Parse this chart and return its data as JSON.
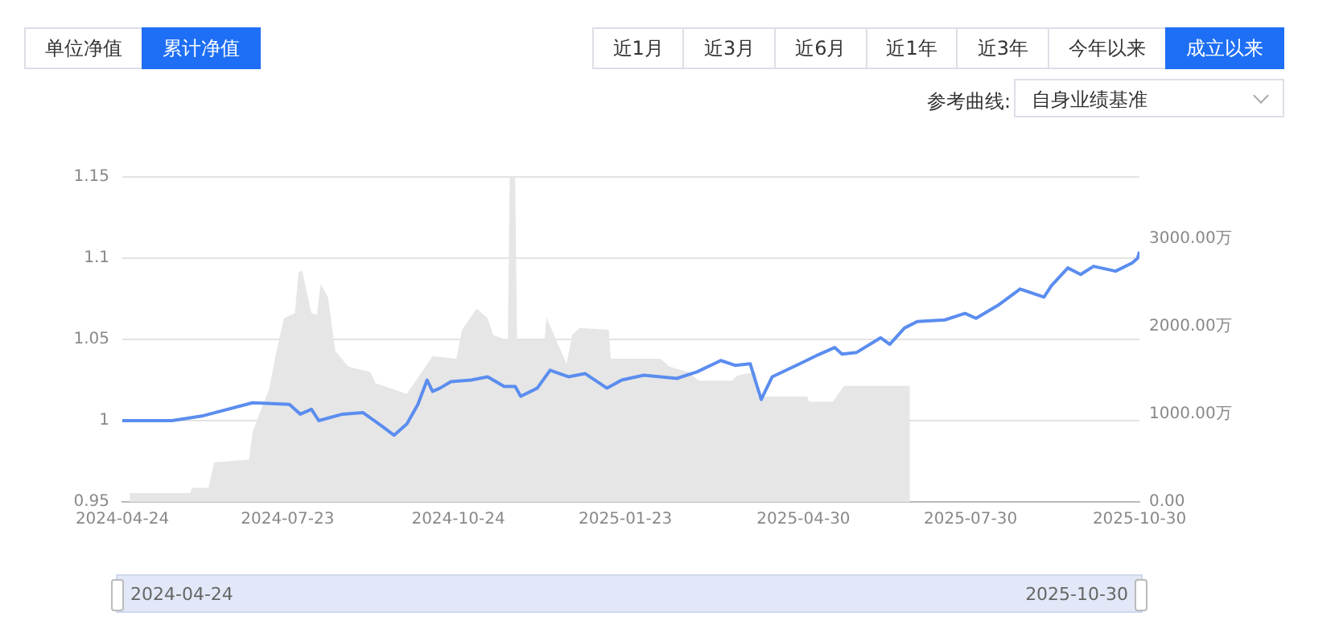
{
  "chart_data": {
    "type": "line",
    "annotations": [
      "单位净值",
      "累计净值",
      "近1月",
      "近3月",
      "近6月",
      "近1年",
      "近3年",
      "今年以来",
      "成立以来",
      "参考曲线:",
      "自身业绩基准",
      "2024-04-24",
      "2025-10-30"
    ],
    "ylim": [
      0.95,
      1.15
    ],
    "yticks": [
      0.95,
      1,
      1.05,
      1.1,
      1.15
    ],
    "y2lim": [
      0,
      3700
    ],
    "y2ticks": [
      {
        "value": 0,
        "label": "0.00"
      },
      {
        "value": 1000,
        "label": "1000.00万"
      },
      {
        "value": 2000,
        "label": "2000.00万"
      },
      {
        "value": 3000,
        "label": "3000.00万"
      }
    ],
    "xlim": [
      "2024-04-24",
      "2025-10-30"
    ],
    "xticks": [
      "2024-04-24",
      "2024-07-23",
      "2024-10-24",
      "2025-01-23",
      "2025-04-30",
      "2025-07-30",
      "2025-10-30"
    ],
    "grid": "y",
    "legend": false,
    "marker": "none",
    "series": [
      {
        "type": "area",
        "axis": "y2",
        "color": "#e6e6e6",
        "x": [
          "2024-04-28",
          "2024-05-31",
          "2024-06-01",
          "2024-06-10",
          "2024-06-13",
          "2024-07-02",
          "2024-07-04",
          "2024-07-13",
          "2024-07-17",
          "2024-07-21",
          "2024-07-27",
          "2024-07-29",
          "2024-07-31",
          "2024-08-05",
          "2024-08-08",
          "2024-08-10",
          "2024-08-14",
          "2024-08-18",
          "2024-08-25",
          "2024-09-06",
          "2024-09-09",
          "2024-09-26",
          "2024-10-10",
          "2024-10-23",
          "2024-10-26",
          "2024-11-03",
          "2024-11-09",
          "2024-11-12",
          "2024-11-20",
          "2024-11-21",
          "2024-11-24",
          "2024-11-25",
          "2024-12-10",
          "2024-12-11",
          "2024-12-16",
          "2024-12-22",
          "2024-12-25",
          "2024-12-29",
          "2025-01-14",
          "2025-01-15",
          "2025-02-11",
          "2025-02-16",
          "2025-02-26",
          "2025-03-04",
          "2025-03-22",
          "2025-03-25",
          "2025-04-04",
          "2025-04-05",
          "2025-05-02",
          "2025-05-03",
          "2025-05-16",
          "2025-05-22",
          "2025-06-27"
        ],
        "values": [
          100,
          100,
          160,
          160,
          450,
          480,
          800,
          1290,
          1720,
          2090,
          2150,
          2620,
          2630,
          2150,
          2130,
          2480,
          2330,
          1720,
          1540,
          1480,
          1350,
          1230,
          1660,
          1630,
          1960,
          2200,
          2090,
          1900,
          1840,
          3700,
          3700,
          1840,
          1840,
          2100,
          1860,
          1570,
          1900,
          1980,
          1960,
          1630,
          1630,
          1540,
          1480,
          1380,
          1380,
          1440,
          1480,
          1200,
          1200,
          1140,
          1140,
          1320,
          1320
        ]
      },
      {
        "type": "line",
        "color": "#5b8def",
        "x": [
          "2024-04-24",
          "2024-05-21",
          "2024-06-07",
          "2024-07-04",
          "2024-07-24",
          "2024-07-30",
          "2024-08-05",
          "2024-08-09",
          "2024-08-22",
          "2024-09-02",
          "2024-09-12",
          "2024-09-19",
          "2024-09-26",
          "2024-10-02",
          "2024-10-07",
          "2024-10-10",
          "2024-10-14",
          "2024-10-20",
          "2024-10-31",
          "2024-11-09",
          "2024-11-18",
          "2024-11-24",
          "2024-11-27",
          "2024-12-06",
          "2024-12-13",
          "2024-12-23",
          "2025-01-01",
          "2025-01-13",
          "2025-01-21",
          "2025-02-02",
          "2025-02-20",
          "2025-03-03",
          "2025-03-16",
          "2025-03-24",
          "2025-04-01",
          "2025-04-07",
          "2025-04-13",
          "2025-04-28",
          "2025-05-07",
          "2025-05-17",
          "2025-05-21",
          "2025-05-29",
          "2025-06-11",
          "2025-06-16",
          "2025-06-24",
          "2025-07-01",
          "2025-07-16",
          "2025-07-27",
          "2025-08-02",
          "2025-08-14",
          "2025-08-26",
          "2025-09-08",
          "2025-09-12",
          "2025-09-21",
          "2025-09-28",
          "2025-10-05",
          "2025-10-17",
          "2025-10-26",
          "2025-10-29",
          "2025-10-30"
        ],
        "values": [
          1.0,
          1.0,
          1.003,
          1.011,
          1.01,
          1.004,
          1.007,
          1.0,
          1.004,
          1.005,
          0.997,
          0.991,
          0.998,
          1.01,
          1.025,
          1.018,
          1.02,
          1.024,
          1.025,
          1.027,
          1.021,
          1.021,
          1.015,
          1.02,
          1.031,
          1.027,
          1.029,
          1.02,
          1.025,
          1.028,
          1.026,
          1.03,
          1.037,
          1.034,
          1.035,
          1.013,
          1.027,
          1.035,
          1.04,
          1.045,
          1.041,
          1.042,
          1.051,
          1.047,
          1.057,
          1.061,
          1.062,
          1.066,
          1.063,
          1.071,
          1.081,
          1.076,
          1.083,
          1.094,
          1.09,
          1.095,
          1.092,
          1.097,
          1.1,
          1.104
        ]
      }
    ]
  }
}
